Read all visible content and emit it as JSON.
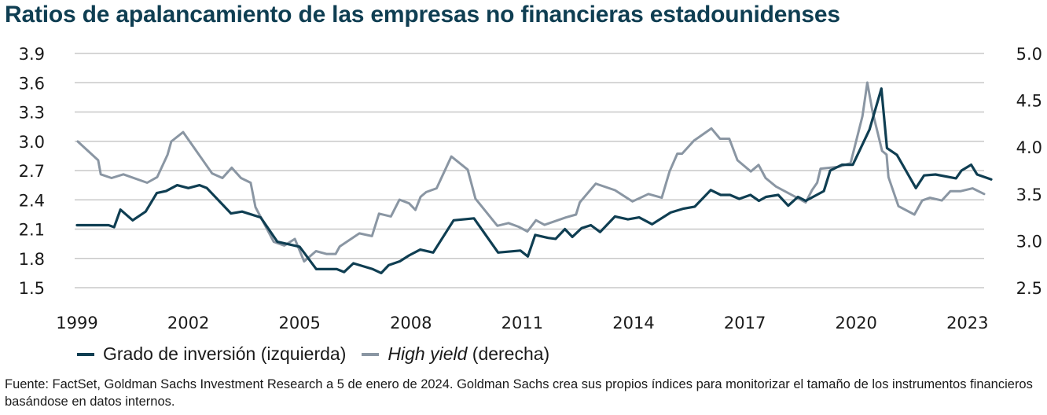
{
  "title": "Ratios de apalancamiento de las empresas no financieras estadounidenses",
  "legend": {
    "ig_label": "Grado de inversión (izquierda)",
    "hy_italic": "High yield",
    "hy_suffix": " (derecha)"
  },
  "source": "Fuente: FactSet, Goldman Sachs Investment Research a 5 de enero de 2024. Goldman Sachs crea sus propios índices para monitorizar el tamaño de los instrumentos financieros basándose en datos internos.",
  "colors": {
    "investment_grade": "#0f3e52",
    "high_yield": "#8a96a3",
    "grid": "#c8c8c8"
  },
  "chart_data": {
    "type": "line",
    "title": "Ratios de apalancamiento de las empresas no financieras estadounidenses",
    "xlabel": "",
    "ylabel_left": "",
    "ylabel_right": "",
    "x_ticks": [
      "1999",
      "2002",
      "2005",
      "2008",
      "2011",
      "2014",
      "2017",
      "2020",
      "2023"
    ],
    "xlim": [
      1999,
      2023.5
    ],
    "y_left_ticks": [
      "3.9",
      "3.6",
      "3.3",
      "3.0",
      "2.7",
      "2.4",
      "2.1",
      "1.8",
      "1.5"
    ],
    "y_left_lim": [
      1.5,
      3.9
    ],
    "y_right_ticks": [
      "5.0",
      "4.5",
      "4.0",
      "3.5",
      "3.0",
      "2.5"
    ],
    "y_right_lim": [
      2.5,
      5.0
    ],
    "grid": true,
    "legend_position": "bottom-left",
    "series": [
      {
        "name": "Grado de inversión (izquierda)",
        "axis": "left",
        "points": [
          [
            1999.0,
            2.14
          ],
          [
            1999.5,
            2.14
          ],
          [
            1999.85,
            2.14
          ],
          [
            2000.0,
            2.12
          ],
          [
            2000.17,
            2.3
          ],
          [
            2000.5,
            2.19
          ],
          [
            2000.85,
            2.28
          ],
          [
            2001.15,
            2.47
          ],
          [
            2001.4,
            2.49
          ],
          [
            2001.7,
            2.55
          ],
          [
            2002.0,
            2.52
          ],
          [
            2002.3,
            2.55
          ],
          [
            2002.5,
            2.52
          ],
          [
            2003.15,
            2.26
          ],
          [
            2003.45,
            2.28
          ],
          [
            2003.95,
            2.22
          ],
          [
            2004.4,
            1.97
          ],
          [
            2005.0,
            1.92
          ],
          [
            2005.45,
            1.69
          ],
          [
            2006.0,
            1.69
          ],
          [
            2006.2,
            1.66
          ],
          [
            2006.45,
            1.75
          ],
          [
            2006.97,
            1.69
          ],
          [
            2007.2,
            1.65
          ],
          [
            2007.4,
            1.73
          ],
          [
            2007.7,
            1.77
          ],
          [
            2007.95,
            1.83
          ],
          [
            2008.25,
            1.89
          ],
          [
            2008.6,
            1.86
          ],
          [
            2009.15,
            2.19
          ],
          [
            2009.7,
            2.21
          ],
          [
            2010.35,
            1.86
          ],
          [
            2010.95,
            1.88
          ],
          [
            2011.15,
            1.82
          ],
          [
            2011.35,
            2.04
          ],
          [
            2011.7,
            2.01
          ],
          [
            2011.9,
            2.0
          ],
          [
            2012.15,
            2.1
          ],
          [
            2012.35,
            2.02
          ],
          [
            2012.6,
            2.11
          ],
          [
            2012.85,
            2.14
          ],
          [
            2013.1,
            2.07
          ],
          [
            2013.5,
            2.23
          ],
          [
            2013.85,
            2.2
          ],
          [
            2014.15,
            2.22
          ],
          [
            2014.5,
            2.15
          ],
          [
            2015.0,
            2.27
          ],
          [
            2015.35,
            2.31
          ],
          [
            2015.65,
            2.33
          ],
          [
            2016.08,
            2.5
          ],
          [
            2016.35,
            2.45
          ],
          [
            2016.6,
            2.45
          ],
          [
            2016.85,
            2.41
          ],
          [
            2017.15,
            2.45
          ],
          [
            2017.38,
            2.39
          ],
          [
            2017.57,
            2.43
          ],
          [
            2017.9,
            2.45
          ],
          [
            2018.17,
            2.34
          ],
          [
            2018.43,
            2.43
          ],
          [
            2018.64,
            2.39
          ],
          [
            2019.13,
            2.49
          ],
          [
            2019.3,
            2.7
          ],
          [
            2019.62,
            2.76
          ],
          [
            2019.91,
            2.76
          ],
          [
            2020.36,
            3.12
          ],
          [
            2020.68,
            3.54
          ],
          [
            2020.83,
            2.93
          ],
          [
            2021.1,
            2.86
          ],
          [
            2021.61,
            2.52
          ],
          [
            2021.83,
            2.65
          ],
          [
            2022.14,
            2.66
          ],
          [
            2022.69,
            2.62
          ],
          [
            2022.84,
            2.7
          ],
          [
            2023.1,
            2.76
          ],
          [
            2023.26,
            2.66
          ],
          [
            2023.64,
            2.61
          ]
        ]
      },
      {
        "name": "High yield (derecha)",
        "axis": "right",
        "points": [
          [
            1999.02,
            4.06
          ],
          [
            1999.57,
            3.86
          ],
          [
            1999.64,
            3.71
          ],
          [
            1999.93,
            3.67
          ],
          [
            2000.25,
            3.71
          ],
          [
            2000.89,
            3.62
          ],
          [
            2001.16,
            3.68
          ],
          [
            2001.44,
            3.92
          ],
          [
            2001.54,
            4.06
          ],
          [
            2001.86,
            4.16
          ],
          [
            2002.64,
            3.72
          ],
          [
            2002.92,
            3.67
          ],
          [
            2003.17,
            3.78
          ],
          [
            2003.42,
            3.67
          ],
          [
            2003.68,
            3.62
          ],
          [
            2003.81,
            3.36
          ],
          [
            2004.3,
            2.99
          ],
          [
            2004.59,
            2.95
          ],
          [
            2004.87,
            3.02
          ],
          [
            2005.12,
            2.78
          ],
          [
            2005.44,
            2.89
          ],
          [
            2005.72,
            2.86
          ],
          [
            2005.97,
            2.86
          ],
          [
            2006.08,
            2.94
          ],
          [
            2006.61,
            3.08
          ],
          [
            2006.95,
            3.05
          ],
          [
            2007.14,
            3.29
          ],
          [
            2007.46,
            3.26
          ],
          [
            2007.69,
            3.44
          ],
          [
            2007.95,
            3.4
          ],
          [
            2008.12,
            3.33
          ],
          [
            2008.26,
            3.47
          ],
          [
            2008.41,
            3.52
          ],
          [
            2008.69,
            3.56
          ],
          [
            2009.09,
            3.9
          ],
          [
            2009.53,
            3.76
          ],
          [
            2009.74,
            3.45
          ],
          [
            2010.33,
            3.16
          ],
          [
            2010.63,
            3.19
          ],
          [
            2010.9,
            3.15
          ],
          [
            2011.14,
            3.1
          ],
          [
            2011.37,
            3.22
          ],
          [
            2011.6,
            3.17
          ],
          [
            2012.18,
            3.25
          ],
          [
            2012.45,
            3.28
          ],
          [
            2012.55,
            3.41
          ],
          [
            2012.98,
            3.61
          ],
          [
            2013.5,
            3.54
          ],
          [
            2013.97,
            3.42
          ],
          [
            2014.4,
            3.5
          ],
          [
            2014.76,
            3.46
          ],
          [
            2014.97,
            3.74
          ],
          [
            2015.18,
            3.93
          ],
          [
            2015.31,
            3.93
          ],
          [
            2015.63,
            4.07
          ],
          [
            2016.1,
            4.2
          ],
          [
            2016.33,
            4.09
          ],
          [
            2016.58,
            4.09
          ],
          [
            2016.8,
            3.86
          ],
          [
            2017.16,
            3.74
          ],
          [
            2017.37,
            3.81
          ],
          [
            2017.56,
            3.67
          ],
          [
            2017.84,
            3.58
          ],
          [
            2018.64,
            3.41
          ],
          [
            2018.81,
            3.54
          ],
          [
            2018.95,
            3.62
          ],
          [
            2019.04,
            3.77
          ],
          [
            2019.53,
            3.79
          ],
          [
            2019.85,
            3.83
          ],
          [
            2020.17,
            4.33
          ],
          [
            2020.3,
            4.69
          ],
          [
            2020.44,
            4.38
          ],
          [
            2020.7,
            3.96
          ],
          [
            2020.82,
            3.92
          ],
          [
            2020.87,
            3.68
          ],
          [
            2021.14,
            3.37
          ],
          [
            2021.57,
            3.28
          ],
          [
            2021.78,
            3.43
          ],
          [
            2021.99,
            3.46
          ],
          [
            2022.31,
            3.43
          ],
          [
            2022.54,
            3.53
          ],
          [
            2022.82,
            3.53
          ],
          [
            2023.14,
            3.56
          ],
          [
            2023.45,
            3.5
          ]
        ]
      }
    ]
  }
}
